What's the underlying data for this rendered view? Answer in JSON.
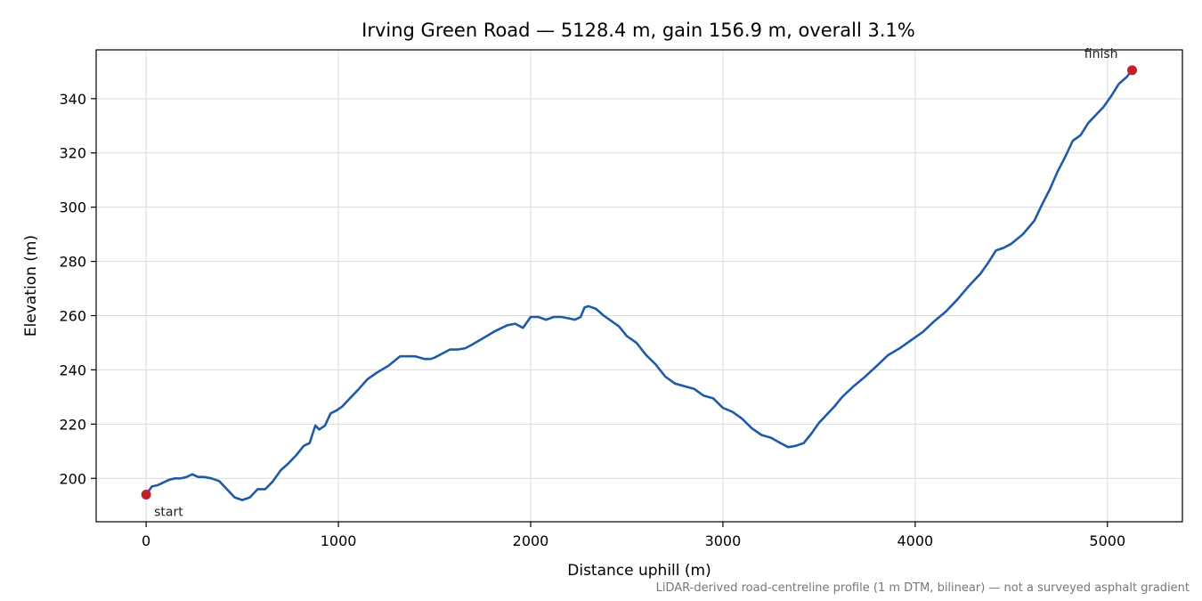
{
  "chart_data": {
    "type": "line",
    "title": "Irving Green Road — 5128.4 m, gain 156.9 m, overall 3.1%",
    "xlabel": "Distance uphill (m)",
    "ylabel": "Elevation (m)",
    "footnote": "LiDAR-derived road-centreline profile (1 m DTM, bilinear) — not a surveyed asphalt gradient",
    "xlim": [
      -260,
      5390
    ],
    "ylim": [
      184,
      358
    ],
    "x_ticks": [
      0,
      1000,
      2000,
      3000,
      4000,
      5000
    ],
    "y_ticks": [
      200,
      220,
      240,
      260,
      280,
      300,
      320,
      340
    ],
    "grid": true,
    "line_color": "#1f5aa6",
    "marker_color": "#c0202a",
    "series": [
      {
        "x": [
          0,
          30,
          60,
          90,
          120,
          150,
          180,
          210,
          240,
          270,
          300,
          340,
          380,
          420,
          460,
          500,
          540,
          580,
          620,
          660,
          700,
          740,
          780,
          820,
          850,
          880,
          900,
          930,
          960,
          990,
          1020,
          1060,
          1100,
          1150,
          1200,
          1260,
          1320,
          1360,
          1400,
          1450,
          1480,
          1500,
          1540,
          1580,
          1620,
          1660,
          1700,
          1760,
          1820,
          1880,
          1920,
          1960,
          2000,
          2040,
          2080,
          2120,
          2160,
          2200,
          2230,
          2260,
          2280,
          2300,
          2340,
          2380,
          2420,
          2460,
          2500,
          2550,
          2600,
          2650,
          2700,
          2750,
          2800,
          2850,
          2900,
          2950,
          3000,
          3050,
          3100,
          3150,
          3200,
          3250,
          3300,
          3340,
          3380,
          3420,
          3460,
          3500,
          3540,
          3580,
          3620,
          3680,
          3740,
          3800,
          3860,
          3920,
          3980,
          4040,
          4100,
          4160,
          4220,
          4280,
          4340,
          4380,
          4420,
          4460,
          4500,
          4560,
          4620,
          4660,
          4700,
          4740,
          4780,
          4820,
          4860,
          4900,
          4940,
          4980,
          5020,
          5060,
          5100,
          5128.4
        ],
        "y": [
          194,
          197,
          197.5,
          198.5,
          199.5,
          200,
          200,
          200.5,
          201.5,
          200.5,
          200.5,
          200,
          199,
          196,
          193,
          192,
          193,
          196,
          196,
          199,
          203,
          205.5,
          208.5,
          212,
          213,
          219.5,
          218,
          219.5,
          224,
          225,
          226.5,
          229.5,
          232.5,
          236.5,
          239,
          241.5,
          245,
          245,
          245,
          244,
          244,
          244.5,
          246,
          247.5,
          247.5,
          248,
          249.5,
          252,
          254.5,
          256.5,
          257,
          255.5,
          259.5,
          259.5,
          258.5,
          259.5,
          259.5,
          259,
          258.5,
          259.5,
          263,
          263.5,
          262.5,
          260,
          258,
          256,
          252.5,
          250,
          245.5,
          242,
          237.5,
          235,
          234,
          233,
          230.5,
          229.5,
          226,
          224.5,
          222,
          218.5,
          216,
          215,
          213,
          211.5,
          212,
          213,
          216.5,
          220.5,
          223.5,
          226.5,
          230,
          234,
          237.5,
          241.5,
          245.5,
          248,
          251,
          254,
          258,
          261.5,
          266,
          271,
          275.5,
          279.5,
          284,
          285,
          286.5,
          290,
          295,
          301,
          306.5,
          313,
          318.5,
          324.5,
          326.5,
          331,
          334,
          337,
          341,
          345.5,
          348,
          350.5
        ]
      }
    ],
    "annotations": [
      {
        "text": "start",
        "x": 0,
        "y": 194
      },
      {
        "text": "finish",
        "x": 5128.4,
        "y": 350.5
      }
    ]
  }
}
